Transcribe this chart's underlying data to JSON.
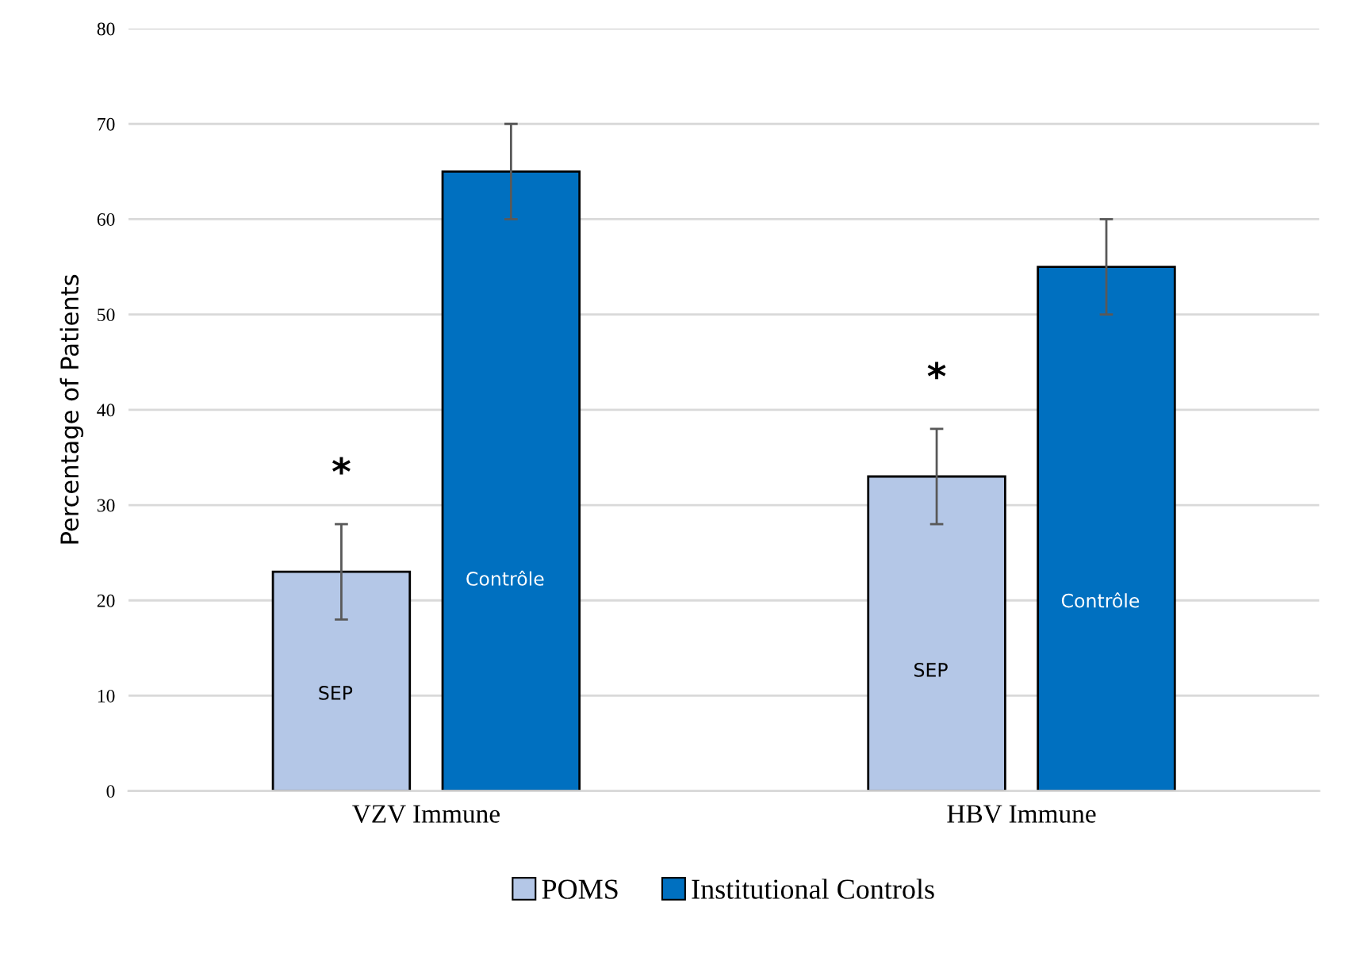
{
  "chart_data": {
    "type": "bar",
    "ylabel": "Percentage of Patients",
    "categories": [
      "VZV Immune",
      "HBV Immune"
    ],
    "series": [
      {
        "name": "POMS",
        "color": "#b4c7e7",
        "values": [
          23,
          33
        ],
        "errors": [
          5,
          5
        ]
      },
      {
        "name": "Institutional Controls",
        "color": "#0070c0",
        "values": [
          65,
          55
        ],
        "errors": [
          5,
          5
        ]
      }
    ],
    "ylim": [
      0,
      80
    ],
    "yticks": [
      0,
      10,
      20,
      30,
      40,
      50,
      60,
      70,
      80
    ],
    "grid": "y",
    "legend": "bottom",
    "annotations": [
      "SEP",
      "Contrôle",
      "SEP",
      "Contrôle",
      "*",
      "*"
    ]
  }
}
